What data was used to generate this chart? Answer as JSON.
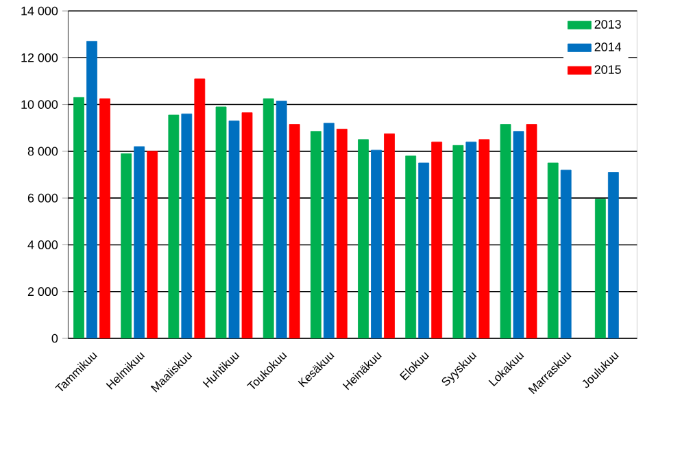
{
  "chart_data": {
    "type": "bar",
    "categories": [
      "Tammikuu",
      "Helmikuu",
      "Maaliskuu",
      "Huhtikuu",
      "Toukokuu",
      "Kesäkuu",
      "Heinäkuu",
      "Elokuu",
      "Syyskuu",
      "Lokakuu",
      "Marraskuu",
      "Joulukuu"
    ],
    "series": [
      {
        "name": "2013",
        "color": "#00b050",
        "values": [
          10300,
          7900,
          9550,
          9900,
          10250,
          8850,
          8500,
          7800,
          8250,
          9150,
          7500,
          5950
        ]
      },
      {
        "name": "2014",
        "color": "#0070c0",
        "values": [
          12700,
          8200,
          9600,
          9300,
          10150,
          9200,
          8050,
          7500,
          8400,
          8850,
          7200,
          7100
        ]
      },
      {
        "name": "2015",
        "color": "#ff0000",
        "values": [
          10250,
          8000,
          11100,
          9650,
          9150,
          8950,
          8750,
          8400,
          8500,
          9150,
          null,
          null
        ]
      }
    ],
    "ylim": [
      0,
      14000
    ],
    "yticks": [
      {
        "value": 0,
        "label": "0"
      },
      {
        "value": 2000,
        "label": "2 000"
      },
      {
        "value": 4000,
        "label": "4 000"
      },
      {
        "value": 6000,
        "label": "6 000"
      },
      {
        "value": 8000,
        "label": "8 000"
      },
      {
        "value": 10000,
        "label": "10 000"
      },
      {
        "value": 12000,
        "label": "12 000"
      },
      {
        "value": 14000,
        "label": "14 000"
      }
    ],
    "grid": "y",
    "legend": "top right"
  }
}
